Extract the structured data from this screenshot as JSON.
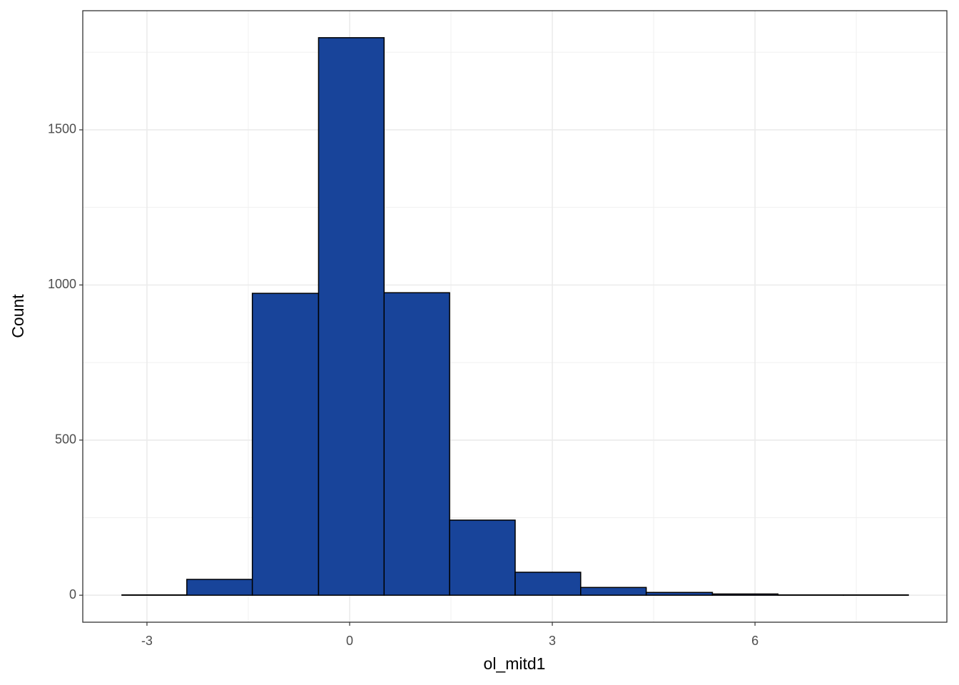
{
  "chart_data": {
    "type": "histogram",
    "x_label": "ol_mitd1",
    "y_label": "Count",
    "bins": [
      -3.37,
      -2.41,
      -1.44,
      -0.46,
      0.51,
      1.48,
      2.45,
      3.42,
      4.39,
      5.37,
      6.34,
      7.31,
      8.27
    ],
    "values": [
      1,
      51,
      973,
      1797,
      975,
      242,
      74,
      25,
      9,
      4,
      1,
      1
    ],
    "color": "#18449a",
    "edge_color": "#000000",
    "xlim": [
      -3.95,
      8.84
    ],
    "ylim": [
      -87,
      1884
    ],
    "xticks": [
      -3,
      0,
      3,
      6
    ],
    "yticks": [
      0,
      500,
      1000,
      1500
    ],
    "grid": true
  }
}
